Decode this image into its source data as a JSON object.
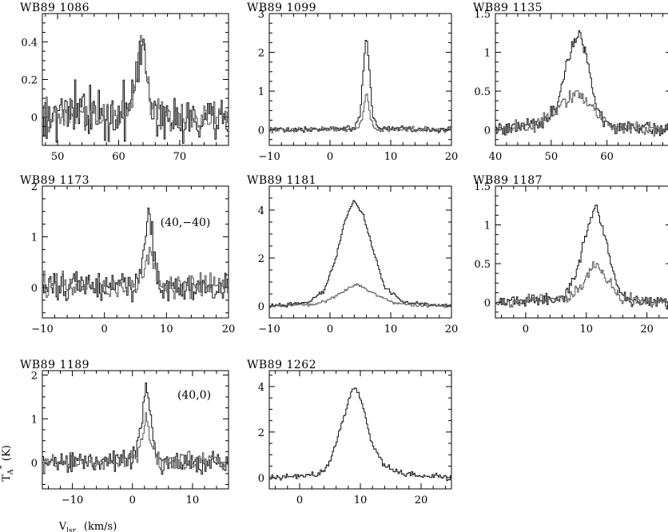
{
  "figure": {
    "ylabel_main": "T",
    "ylabel_sub": "A",
    "ylabel_sup": "*",
    "ylabel_unit": "(K)",
    "xlabel_main": "V",
    "xlabel_sub": "lsr",
    "xlabel_unit": "(km/s)",
    "series_colors": [
      "#111111",
      "#555555"
    ]
  },
  "chart_data": [
    {
      "type": "line",
      "title": "WB89 1086",
      "annotation": "",
      "xlim": [
        47.5,
        78
      ],
      "ylim": [
        -0.15,
        0.55
      ],
      "xticks": [
        50,
        60,
        70
      ],
      "yticks": [
        0,
        0.2,
        0.4
      ],
      "ytick_labels": [
        "0",
        "0.2",
        "0.4"
      ],
      "series": [
        {
          "points": [
            [
              47.5,
              0.02
            ],
            [
              55,
              0.03
            ],
            [
              60,
              0.0
            ],
            [
              62,
              0.05
            ],
            [
              63,
              0.2
            ],
            [
              63.8,
              0.4
            ],
            [
              64.6,
              0.2
            ],
            [
              65.5,
              0.03
            ],
            [
              70,
              0.0
            ],
            [
              78,
              0.01
            ]
          ],
          "noise": 0.09
        },
        {
          "points": [
            [
              47.5,
              0.0
            ],
            [
              55,
              0.01
            ],
            [
              60,
              0.0
            ],
            [
              62,
              0.05
            ],
            [
              63,
              0.25
            ],
            [
              63.8,
              0.44
            ],
            [
              64.6,
              0.25
            ],
            [
              65.5,
              0.04
            ],
            [
              70,
              0.0
            ],
            [
              78,
              0.0
            ]
          ],
          "noise": 0.06
        }
      ]
    },
    {
      "type": "line",
      "title": "WB89 1099",
      "annotation": "",
      "xlim": [
        -10,
        20
      ],
      "ylim": [
        -0.4,
        3.0
      ],
      "xticks": [
        -10,
        0,
        10,
        20
      ],
      "yticks": [
        0,
        1,
        2,
        3
      ],
      "ytick_labels": [
        "0",
        "1",
        "2",
        "3"
      ],
      "series": [
        {
          "points": [
            [
              -10,
              0.0
            ],
            [
              4,
              0.05
            ],
            [
              5,
              0.4
            ],
            [
              5.6,
              1.8
            ],
            [
              6,
              2.45
            ],
            [
              6.4,
              1.8
            ],
            [
              7,
              0.4
            ],
            [
              8,
              0.05
            ],
            [
              20,
              0.0
            ]
          ],
          "noise": 0.05
        },
        {
          "points": [
            [
              -10,
              0.0
            ],
            [
              4.5,
              0.02
            ],
            [
              5.3,
              0.3
            ],
            [
              6,
              1.05
            ],
            [
              6.7,
              0.3
            ],
            [
              7.5,
              0.02
            ],
            [
              20,
              0.0
            ]
          ],
          "noise": 0.05
        }
      ]
    },
    {
      "type": "line",
      "title": "WB89 1135",
      "annotation": "",
      "xlim": [
        40,
        71.5
      ],
      "ylim": [
        -0.2,
        1.5
      ],
      "xticks": [
        40,
        50,
        60
      ],
      "yticks": [
        0,
        0.5,
        1,
        1.5
      ],
      "ytick_labels": [
        "0",
        "0.5",
        "1",
        "1.5"
      ],
      "series": [
        {
          "points": [
            [
              40,
              0.0
            ],
            [
              48,
              0.05
            ],
            [
              51,
              0.3
            ],
            [
              53,
              0.9
            ],
            [
              54.8,
              1.28
            ],
            [
              56.5,
              0.9
            ],
            [
              58,
              0.3
            ],
            [
              60,
              0.05
            ],
            [
              71.5,
              0.0
            ]
          ],
          "noise": 0.06
        },
        {
          "points": [
            [
              40,
              0.0
            ],
            [
              47,
              0.05
            ],
            [
              50,
              0.2
            ],
            [
              53,
              0.4
            ],
            [
              55,
              0.45
            ],
            [
              57,
              0.35
            ],
            [
              59,
              0.15
            ],
            [
              61,
              0.03
            ],
            [
              71.5,
              0.0
            ]
          ],
          "noise": 0.06
        }
      ]
    },
    {
      "type": "line",
      "title": "WB89 1173",
      "annotation": "(40,−40)",
      "xlim": [
        -10,
        20
      ],
      "ylim": [
        -0.6,
        2.0
      ],
      "xticks": [
        -10,
        0,
        10,
        20
      ],
      "yticks": [
        0,
        1,
        2
      ],
      "ytick_labels": [
        "0",
        "1",
        "2"
      ],
      "series": [
        {
          "points": [
            [
              -10,
              0.0
            ],
            [
              5,
              0.05
            ],
            [
              6,
              0.5
            ],
            [
              6.8,
              1.2
            ],
            [
              7.2,
              1.6
            ],
            [
              7.7,
              1.0
            ],
            [
              8.5,
              0.2
            ],
            [
              9.5,
              0.0
            ],
            [
              20,
              0.0
            ]
          ],
          "noise": 0.2
        },
        {
          "points": [
            [
              -10,
              0.0
            ],
            [
              5.5,
              0.05
            ],
            [
              6.5,
              0.4
            ],
            [
              7.3,
              0.7
            ],
            [
              8,
              0.4
            ],
            [
              9,
              0.05
            ],
            [
              20,
              0.0
            ]
          ],
          "noise": 0.18
        }
      ]
    },
    {
      "type": "line",
      "title": "WB89 1181",
      "annotation": "",
      "xlim": [
        -10,
        20
      ],
      "ylim": [
        -0.5,
        5.0
      ],
      "xticks": [
        -10,
        0,
        10,
        20
      ],
      "yticks": [
        0,
        2,
        4
      ],
      "ytick_labels": [
        "0",
        "2",
        "4"
      ],
      "series": [
        {
          "points": [
            [
              -10,
              0.0
            ],
            [
              -4,
              0.1
            ],
            [
              -1,
              0.6
            ],
            [
              1,
              2.0
            ],
            [
              2.5,
              3.6
            ],
            [
              4,
              4.4
            ],
            [
              5.5,
              3.8
            ],
            [
              7,
              2.4
            ],
            [
              9,
              0.8
            ],
            [
              12,
              0.15
            ],
            [
              20,
              0.0
            ]
          ],
          "noise": 0.05
        },
        {
          "points": [
            [
              -10,
              0.0
            ],
            [
              -3,
              0.05
            ],
            [
              0,
              0.25
            ],
            [
              2,
              0.6
            ],
            [
              4.5,
              0.9
            ],
            [
              7,
              0.55
            ],
            [
              10,
              0.15
            ],
            [
              14,
              0.02
            ],
            [
              20,
              0.0
            ]
          ],
          "noise": 0.05
        }
      ]
    },
    {
      "type": "line",
      "title": "WB89 1187",
      "annotation": "",
      "xlim": [
        -5,
        24
      ],
      "ylim": [
        -0.2,
        1.5
      ],
      "xticks": [
        0,
        10,
        20
      ],
      "yticks": [
        0,
        0.5,
        1,
        1.5
      ],
      "ytick_labels": [
        "0",
        "0.5",
        "1",
        "1.5"
      ],
      "series": [
        {
          "points": [
            [
              -5,
              0.0
            ],
            [
              6,
              0.05
            ],
            [
              8,
              0.3
            ],
            [
              10,
              0.9
            ],
            [
              11.7,
              1.27
            ],
            [
              13.2,
              0.8
            ],
            [
              15,
              0.2
            ],
            [
              17,
              0.02
            ],
            [
              24,
              0.0
            ]
          ],
          "noise": 0.05
        },
        {
          "points": [
            [
              -5,
              0.0
            ],
            [
              7,
              0.05
            ],
            [
              9,
              0.2
            ],
            [
              11.5,
              0.5
            ],
            [
              13.5,
              0.3
            ],
            [
              15.5,
              0.05
            ],
            [
              24,
              0.0
            ]
          ],
          "noise": 0.05
        }
      ]
    },
    {
      "type": "line",
      "title": "WB89 1189",
      "annotation": "(40,0)",
      "xlim": [
        -15,
        16
      ],
      "ylim": [
        -0.6,
        2.1
      ],
      "xticks": [
        -10,
        0,
        10
      ],
      "yticks": [
        0,
        1,
        2
      ],
      "ytick_labels": [
        "0",
        "1",
        "2"
      ],
      "series": [
        {
          "points": [
            [
              -15,
              0.0
            ],
            [
              0,
              0.05
            ],
            [
              1,
              0.5
            ],
            [
              1.8,
              1.3
            ],
            [
              2.3,
              1.8
            ],
            [
              2.9,
              1.2
            ],
            [
              3.6,
              0.3
            ],
            [
              4.5,
              0.0
            ],
            [
              16,
              0.0
            ]
          ],
          "noise": 0.16
        },
        {
          "points": [
            [
              -15,
              0.0
            ],
            [
              0.5,
              0.05
            ],
            [
              1.5,
              0.5
            ],
            [
              2.3,
              1.0
            ],
            [
              3.1,
              0.5
            ],
            [
              4,
              0.05
            ],
            [
              16,
              0.0
            ]
          ],
          "noise": 0.14
        }
      ]
    },
    {
      "type": "line",
      "title": "WB89 1262",
      "annotation": "",
      "xlim": [
        -5,
        25
      ],
      "ylim": [
        -0.5,
        4.7
      ],
      "xticks": [
        0,
        10,
        20
      ],
      "yticks": [
        0,
        2,
        4
      ],
      "ytick_labels": [
        "0",
        "2",
        "4"
      ],
      "series": [
        {
          "points": [
            [
              -5,
              0.0
            ],
            [
              3,
              0.1
            ],
            [
              5,
              0.6
            ],
            [
              7,
              2.4
            ],
            [
              8.5,
              3.8
            ],
            [
              9.5,
              3.9
            ],
            [
              10.5,
              3.0
            ],
            [
              12,
              1.4
            ],
            [
              14,
              0.5
            ],
            [
              17,
              0.15
            ],
            [
              25,
              0.0
            ]
          ],
          "noise": 0.09
        }
      ]
    }
  ]
}
